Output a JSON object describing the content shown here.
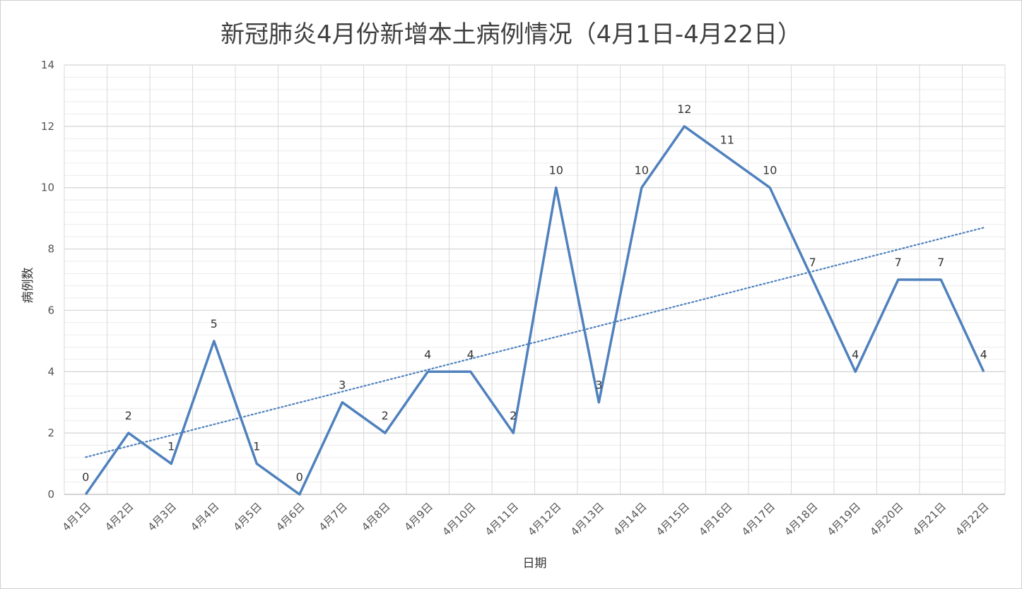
{
  "chart_data": {
    "type": "line",
    "title": "新冠肺炎4月份新增本土病例情况（4月1日-4月22日）",
    "xlabel": "日期",
    "ylabel": "病例数",
    "categories": [
      "4月1日",
      "4月2日",
      "4月3日",
      "4月4日",
      "4月5日",
      "4月6日",
      "4月7日",
      "4月8日",
      "4月9日",
      "4月10日",
      "4月11日",
      "4月12日",
      "4月13日",
      "4月14日",
      "4月15日",
      "4月16日",
      "4月17日",
      "4月18日",
      "4月19日",
      "4月20日",
      "4月21日",
      "4月22日"
    ],
    "series": [
      {
        "values": [
          0,
          2,
          1,
          5,
          1,
          0,
          3,
          2,
          4,
          4,
          2,
          10,
          3,
          10,
          12,
          11,
          10,
          7,
          4,
          7,
          7,
          4
        ],
        "color": "#4f81bd"
      }
    ],
    "trendline": {
      "type": "linear",
      "style": "dotted",
      "color": "#4f81bd"
    },
    "ylim": [
      0,
      14
    ],
    "yticks": [
      0,
      2,
      4,
      6,
      8,
      10,
      12,
      14
    ],
    "grid": true,
    "data_labels": true
  }
}
